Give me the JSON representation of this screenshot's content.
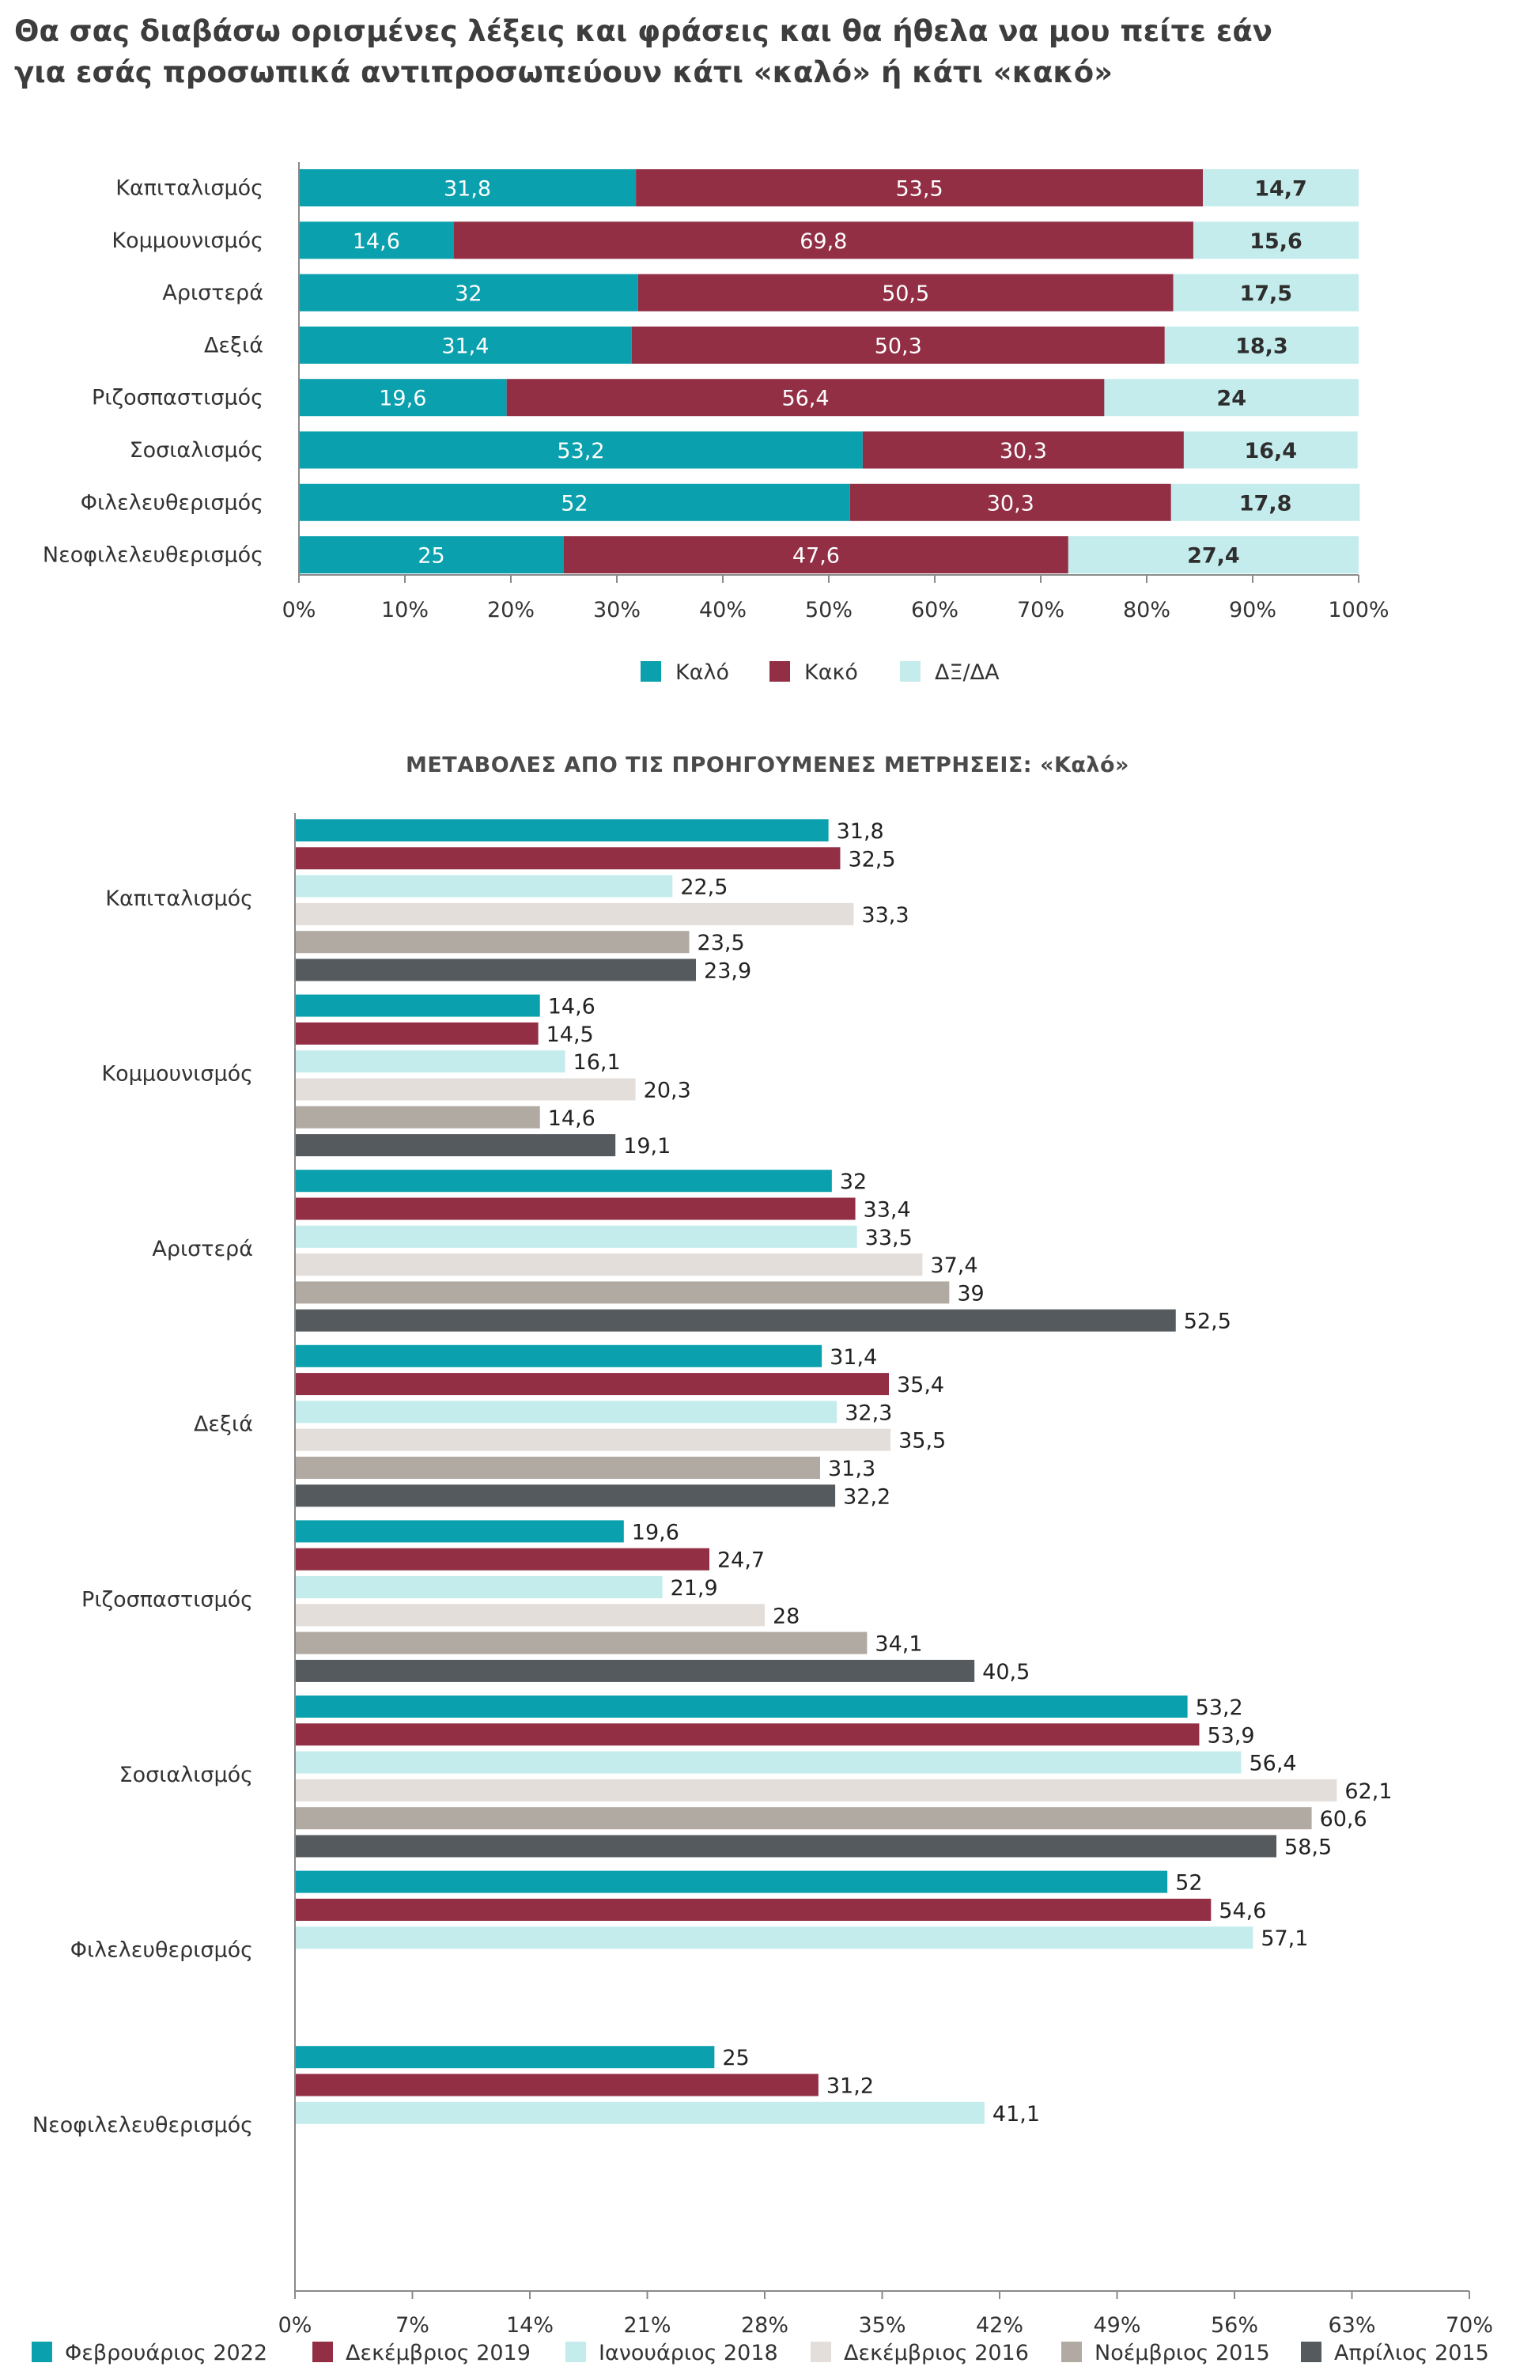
{
  "title_line1": "Θα σας διαβάσω ορισμένες λέξεις και φράσεις και θα ήθελα να μου πείτε εάν",
  "title_line2": "για εσάς προσωπικά αντιπροσωπεύουν κάτι «καλό» ή κάτι «κακό»",
  "subtitle": "ΜΕΤΑΒΟΛΕΣ ΑΠΟ ΤΙΣ ΠΡΟΗΓΟΥΜΕΝΕΣ ΜΕΤΡΗΣΕΙΣ: «Καλό»",
  "chart_data": [
    {
      "type": "bar",
      "orientation": "horizontal",
      "stacked": true,
      "categories": [
        "Καπιταλισμός",
        "Κομμουνισμός",
        "Αριστερά",
        "Δεξιά",
        "Ριζοσπαστισμός",
        "Σοσιαλισμός",
        "Φιλελευθερισμός",
        "Νεοφιλελευθερισμός"
      ],
      "series": [
        {
          "name": "Καλό",
          "color": "#0aa0ad",
          "values": [
            31.8,
            14.6,
            32,
            31.4,
            19.6,
            53.2,
            52,
            25
          ],
          "labels": [
            "31,8",
            "14,6",
            "32",
            "31,4",
            "19,6",
            "53,2",
            "52",
            "25"
          ]
        },
        {
          "name": "Κακό",
          "color": "#922f45",
          "values": [
            53.5,
            69.8,
            50.5,
            50.3,
            56.4,
            30.3,
            30.3,
            47.6
          ],
          "labels": [
            "53,5",
            "69,8",
            "50,5",
            "50,3",
            "56,4",
            "30,3",
            "30,3",
            "47,6"
          ]
        },
        {
          "name": "ΔΞ/ΔΑ",
          "color": "#c4ecec",
          "values": [
            14.7,
            15.6,
            17.5,
            18.3,
            24,
            16.4,
            17.8,
            27.4
          ],
          "labels": [
            "14,7",
            "15,6",
            "17,5",
            "18,3",
            "24",
            "16,4",
            "17,8",
            "27,4"
          ]
        }
      ],
      "xlim": [
        0,
        100
      ],
      "x_ticks": [
        "0%",
        "10%",
        "20%",
        "30%",
        "40%",
        "50%",
        "60%",
        "70%",
        "80%",
        "90%",
        "100%"
      ],
      "legend_placement": "bottom"
    },
    {
      "type": "bar",
      "orientation": "horizontal",
      "stacked": false,
      "categories": [
        "Καπιταλισμός",
        "Κομμουνισμός",
        "Αριστερά",
        "Δεξιά",
        "Ριζοσπαστισμός",
        "Σοσιαλισμός",
        "Φιλελευθερισμός",
        "Νεοφιλελευθερισμός"
      ],
      "series": [
        {
          "name": "Φεβρουάριος 2022",
          "color": "#0aa0ad",
          "values": [
            31.8,
            14.6,
            32,
            31.4,
            19.6,
            53.2,
            52,
            25
          ],
          "labels": [
            "31,8",
            "14,6",
            "32",
            "31,4",
            "19,6",
            "53,2",
            "52",
            "25"
          ]
        },
        {
          "name": "Δεκέμβριος 2019",
          "color": "#922f45",
          "values": [
            32.5,
            14.5,
            33.4,
            35.4,
            24.7,
            53.9,
            54.6,
            31.2
          ],
          "labels": [
            "32,5",
            "14,5",
            "33,4",
            "35,4",
            "24,7",
            "53,9",
            "54,6",
            "31,2"
          ]
        },
        {
          "name": "Ιανουάριος 2018",
          "color": "#c4ecec",
          "values": [
            22.5,
            16.1,
            33.5,
            32.3,
            21.9,
            56.4,
            57.1,
            41.1
          ],
          "labels": [
            "22,5",
            "16,1",
            "33,5",
            "32,3",
            "21,9",
            "56,4",
            "57,1",
            "41,1"
          ]
        },
        {
          "name": "Δεκέμβριος 2016",
          "color": "#e4deda",
          "values": [
            33.3,
            20.3,
            37.4,
            35.5,
            28,
            62.1,
            null,
            null
          ],
          "labels": [
            "33,3",
            "20,3",
            "37,4",
            "35,5",
            "28",
            "62,1",
            "",
            ""
          ]
        },
        {
          "name": "Νοέμβριος 2015",
          "color": "#b1aaa2",
          "values": [
            23.5,
            14.6,
            39,
            31.3,
            34.1,
            60.6,
            null,
            null
          ],
          "labels": [
            "23,5",
            "14,6",
            "39",
            "31,3",
            "34,1",
            "60,6",
            "",
            ""
          ]
        },
        {
          "name": "Απρίλιος 2015",
          "color": "#555a5e",
          "values": [
            23.9,
            19.1,
            52.5,
            32.2,
            40.5,
            58.5,
            null,
            null
          ],
          "labels": [
            "23,9",
            "19,1",
            "52,5",
            "32,2",
            "40,5",
            "58,5",
            "",
            ""
          ]
        }
      ],
      "xlim": [
        0,
        70
      ],
      "x_ticks": [
        "0%",
        "7%",
        "14%",
        "21%",
        "28%",
        "35%",
        "42%",
        "49%",
        "56%",
        "63%",
        "70%"
      ],
      "legend_placement": "bottom"
    }
  ]
}
